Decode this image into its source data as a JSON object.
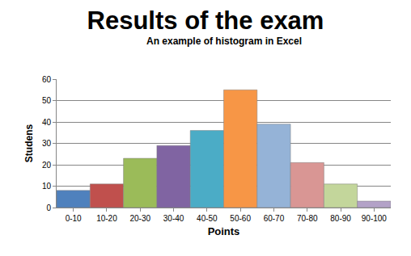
{
  "chart_data": {
    "type": "bar",
    "title": "Results of the exam",
    "subtitle": "An example of histogram in Excel",
    "x_label": "Points",
    "y_label": "Studens",
    "categories": [
      "0-10",
      "10-20",
      "20-30",
      "30-40",
      "40-50",
      "50-60",
      "60-70",
      "70-80",
      "80-90",
      "90-100"
    ],
    "values": [
      8,
      11,
      23,
      29,
      36,
      55,
      39,
      21,
      11,
      3
    ],
    "colors": [
      "#4f81bd",
      "#c0504d",
      "#9bbb59",
      "#8064a2",
      "#4bacc6",
      "#f79646",
      "#95b3d7",
      "#d99694",
      "#c3d69b",
      "#b3a2c7"
    ],
    "ylim": [
      0,
      60
    ],
    "yticks": [
      0,
      10,
      20,
      30,
      40,
      50,
      60
    ],
    "grid": true
  }
}
